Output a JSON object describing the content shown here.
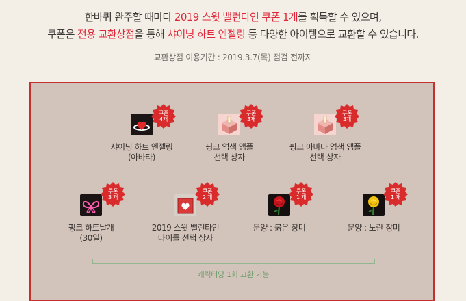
{
  "intro": {
    "line1": {
      "pre": "한바퀴 완주할 때마다 ",
      "highlight": "2019 스윗 밸런타인 쿠폰 1개",
      "post": "를 획득할 수 있으며,"
    },
    "line2": {
      "pre": "쿠폰은 ",
      "highlight1": "전용 교환상점",
      "mid": "을 통해 ",
      "highlight2": "샤이닝 하트 엔젤링",
      "post": " 등 다양한 아이템으로 교환할 수 있습니다."
    },
    "period": "교환상점 이용기간 : 2019.3.7(목) 점검 전까지"
  },
  "shop": {
    "items": [
      {
        "name_line1": "샤이닝 하트 엔젤링",
        "name_line2": "(아바타)",
        "badge_label": "쿠폰",
        "badge_count": "4개",
        "icon": "shining-heart-angel-ring-icon"
      },
      {
        "name_line1": "핑크 염색 앰플",
        "name_line2": "선택 상자",
        "badge_label": "쿠폰",
        "badge_count": "3개",
        "icon": "pink-dye-ampoule-box-icon"
      },
      {
        "name_line1": "핑크 아바타 염색 앰플",
        "name_line2": "선택 상자",
        "badge_label": "쿠폰",
        "badge_count": "3개",
        "icon": "pink-avatar-dye-ampoule-box-icon"
      },
      {
        "name_line1": "핑크 하트날개",
        "name_line2": "(30일)",
        "badge_label": "쿠폰",
        "badge_count": "3 개",
        "icon": "pink-heart-wings-icon"
      },
      {
        "name_line1": "2019 스윗 밸런타인",
        "name_line2": "타이틀 선택 상자",
        "badge_label": "쿠폰",
        "badge_count": "2 개",
        "icon": "valentine-title-box-icon"
      },
      {
        "name_line1": "문양 : 붉은 장미",
        "name_line2": "",
        "badge_label": "쿠폰",
        "badge_count": "1 개",
        "icon": "red-rose-icon"
      },
      {
        "name_line1": "문양 : 노란 장미",
        "name_line2": "",
        "badge_label": "쿠폰",
        "badge_count": "1 개",
        "icon": "yellow-rose-icon"
      }
    ],
    "limit_text": "캐릭터당 1회 교환 가능"
  },
  "colors": {
    "accent": "#e0283a",
    "badge": "#d92b2b",
    "panel_bg": "#d3c4bb",
    "panel_border": "#c42f2f",
    "limit_line": "#93b58f"
  }
}
